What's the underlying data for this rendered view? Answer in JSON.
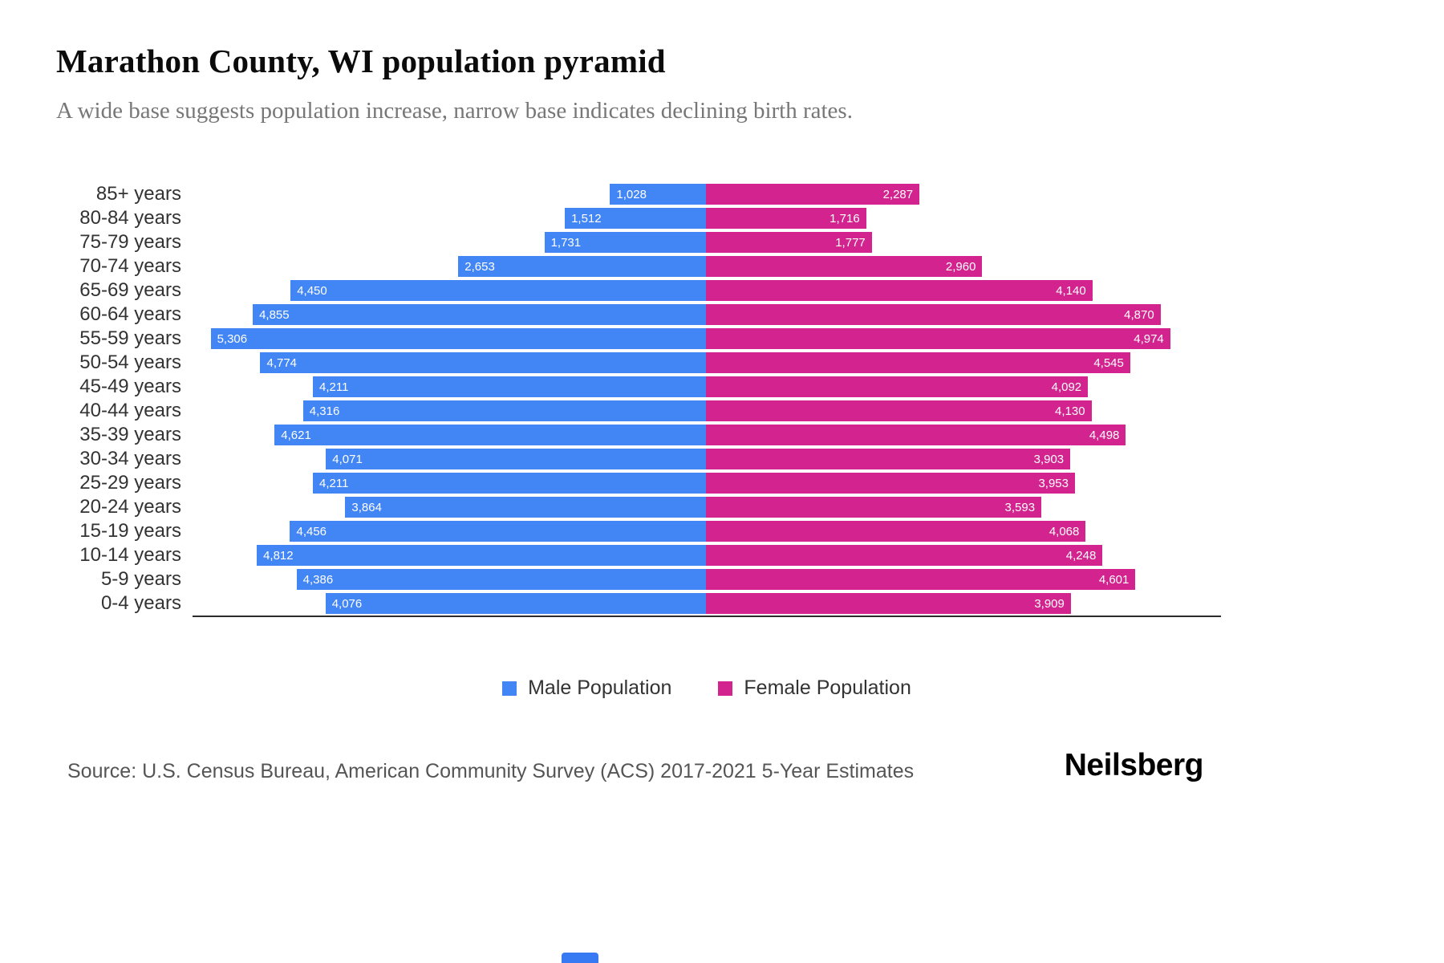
{
  "header": {
    "title": "Marathon County, WI population pyramid",
    "subtitle": "A wide base suggests population increase, narrow base indicates declining birth rates."
  },
  "chart_data": {
    "type": "bar",
    "subtype": "population_pyramid",
    "orientation": "horizontal",
    "title": "Marathon County, WI population pyramid",
    "categories": [
      "85+ years",
      "80-84 years",
      "75-79 years",
      "70-74 years",
      "65-69 years",
      "60-64 years",
      "55-59 years",
      "50-54 years",
      "45-49 years",
      "40-44 years",
      "35-39 years",
      "30-34 years",
      "25-29 years",
      "20-24 years",
      "15-19 years",
      "10-14 years",
      "5-9 years",
      "0-4 years"
    ],
    "series": [
      {
        "name": "Male Population",
        "side": "left",
        "color": "#4285f4",
        "values": [
          1028,
          1512,
          1731,
          2653,
          4450,
          4855,
          5306,
          4774,
          4211,
          4316,
          4621,
          4071,
          4211,
          3864,
          4456,
          4812,
          4386,
          4076
        ]
      },
      {
        "name": "Female Population",
        "side": "right",
        "color": "#d2238f",
        "values": [
          2287,
          1716,
          1777,
          2960,
          4140,
          4870,
          4974,
          4545,
          4092,
          4130,
          4498,
          3903,
          3953,
          3593,
          4068,
          4248,
          4601,
          3909
        ]
      }
    ],
    "x_max_per_side": 5500,
    "value_labels": "inside-end",
    "legend_position": "bottom",
    "grid": false
  },
  "footer": {
    "source": "Source: U.S. Census Bureau, American Community Survey (ACS) 2017-2021 5-Year Estimates",
    "brand": "Neilsberg"
  }
}
